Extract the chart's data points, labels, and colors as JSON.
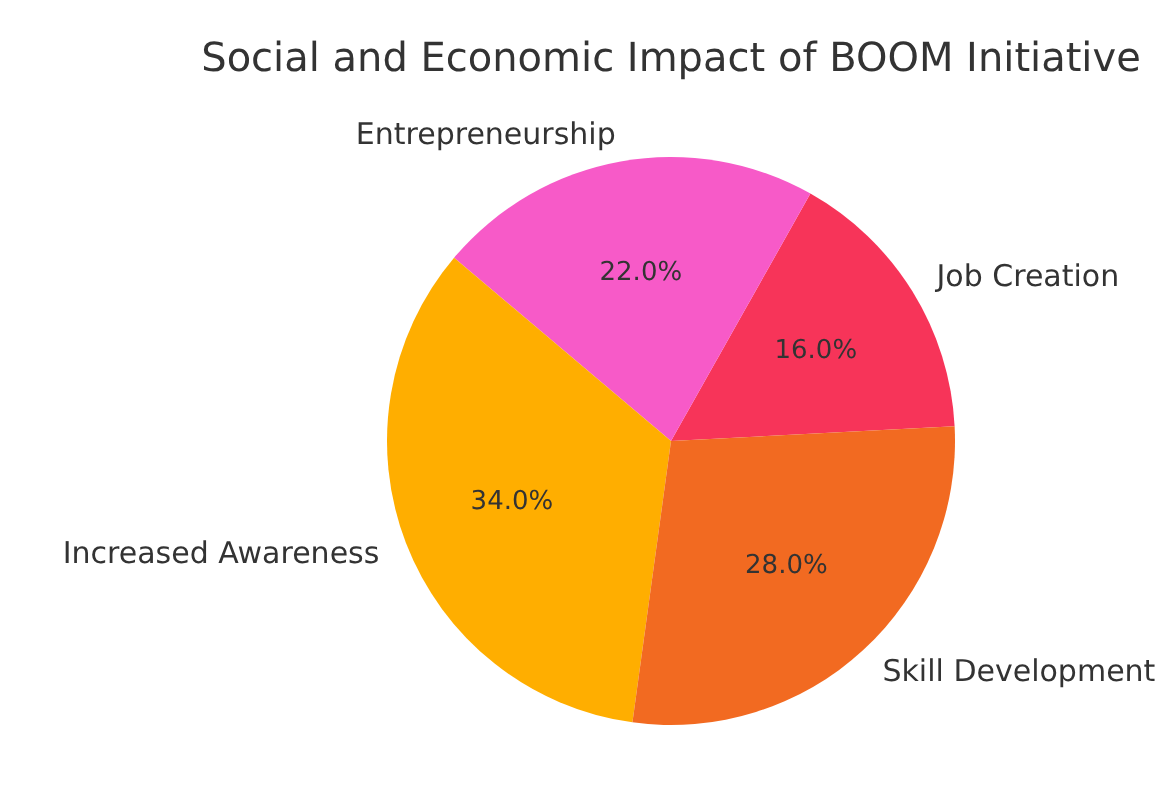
{
  "chart_data": {
    "type": "pie",
    "title": "Social and Economic Impact of BOOM Initiative",
    "categories": [
      "Job Creation",
      "Entrepreneurship",
      "Increased Awareness",
      "Skill Development"
    ],
    "values": [
      16,
      22,
      34,
      28
    ],
    "colors": [
      "#f73459",
      "#f75ac8",
      "#ffae00",
      "#f26a21"
    ],
    "value_labels": [
      "16.0%",
      "22.0%",
      "34.0%",
      "28.0%"
    ]
  }
}
